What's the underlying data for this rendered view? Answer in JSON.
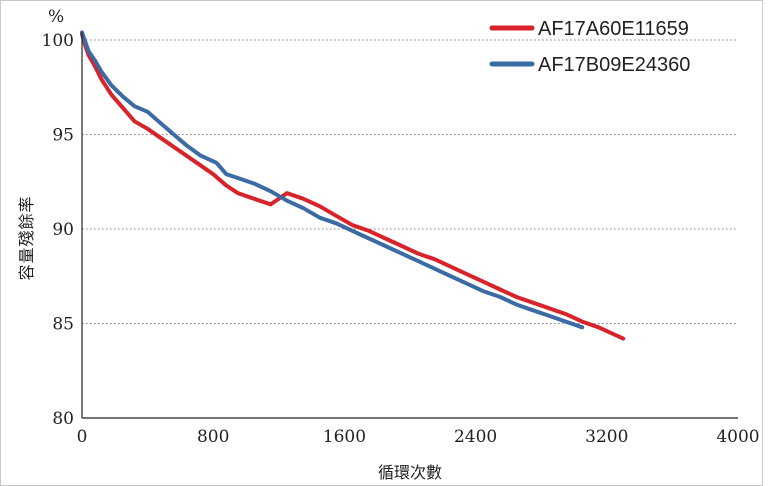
{
  "chart_data": {
    "type": "line",
    "ylabel": "容量殘餘率",
    "yunit": "%",
    "xlabel": "循環次數",
    "xlim": [
      0,
      4000
    ],
    "ylim": [
      80,
      100
    ],
    "xticks": [
      "0",
      "800",
      "1600",
      "2400",
      "3200",
      "4000"
    ],
    "yticks": [
      "80",
      "85",
      "90",
      "95",
      "100"
    ],
    "grid": "horizontal dotted",
    "legend_position": "top-right",
    "series": [
      {
        "name": "AF17A60E11659",
        "color": "#d8232a",
        "x": [
          0,
          20,
          40,
          80,
          120,
          180,
          250,
          320,
          400,
          500,
          600,
          700,
          800,
          880,
          950,
          1050,
          1150,
          1250,
          1350,
          1450,
          1550,
          1650,
          1750,
          1850,
          1950,
          2050,
          2150,
          2250,
          2350,
          2450,
          2550,
          2650,
          2750,
          2850,
          2950,
          3050,
          3150,
          3250,
          3300
        ],
        "y": [
          100.3,
          99.7,
          99.2,
          98.6,
          97.9,
          97.1,
          96.4,
          95.7,
          95.3,
          94.7,
          94.1,
          93.5,
          92.9,
          92.3,
          91.9,
          91.6,
          91.3,
          91.9,
          91.6,
          91.2,
          90.7,
          90.2,
          89.9,
          89.5,
          89.1,
          88.7,
          88.4,
          88.0,
          87.6,
          87.2,
          86.8,
          86.4,
          86.1,
          85.8,
          85.5,
          85.1,
          84.8,
          84.4,
          84.2
        ]
      },
      {
        "name": "AF17B09E24360",
        "color": "#3b6aa4",
        "x": [
          0,
          20,
          40,
          80,
          120,
          180,
          250,
          320,
          400,
          480,
          560,
          640,
          720,
          820,
          880,
          950,
          1050,
          1150,
          1250,
          1350,
          1450,
          1550,
          1650,
          1750,
          1850,
          1950,
          2050,
          2150,
          2250,
          2350,
          2450,
          2550,
          2650,
          2750,
          2850,
          2950,
          3050
        ],
        "y": [
          100.4,
          99.9,
          99.4,
          98.9,
          98.3,
          97.6,
          97.0,
          96.5,
          96.2,
          95.6,
          95.0,
          94.4,
          93.9,
          93.5,
          92.9,
          92.7,
          92.4,
          92.0,
          91.5,
          91.1,
          90.6,
          90.3,
          89.9,
          89.5,
          89.1,
          88.7,
          88.3,
          87.9,
          87.5,
          87.1,
          86.7,
          86.4,
          86.0,
          85.7,
          85.4,
          85.1,
          84.8
        ]
      }
    ]
  }
}
